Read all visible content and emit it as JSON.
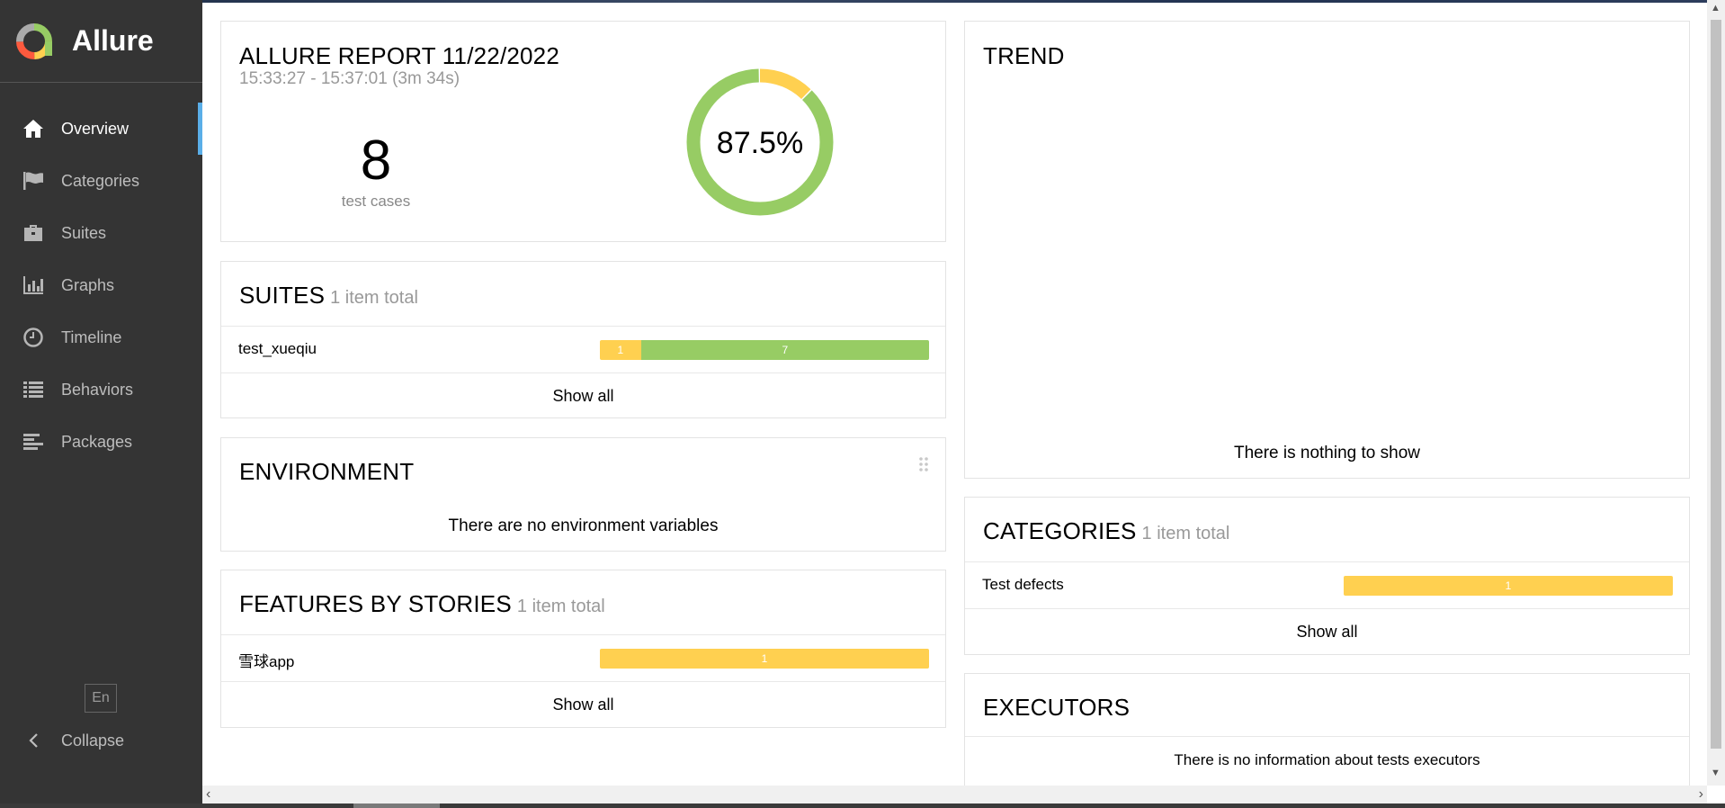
{
  "app": {
    "name": "Allure",
    "lang": "En",
    "collapse_label": "Collapse"
  },
  "nav": [
    {
      "label": "Overview",
      "icon": "home-icon",
      "active": true
    },
    {
      "label": "Categories",
      "icon": "flag-icon"
    },
    {
      "label": "Suites",
      "icon": "briefcase-icon"
    },
    {
      "label": "Graphs",
      "icon": "bar-chart-icon"
    },
    {
      "label": "Timeline",
      "icon": "clock-icon"
    },
    {
      "label": "Behaviors",
      "icon": "list-icon"
    },
    {
      "label": "Packages",
      "icon": "align-left-icon"
    }
  ],
  "summary": {
    "title": "ALLURE REPORT 11/22/2022",
    "time": "15:33:27 - 15:37:01 (3m 34s)",
    "test_count": "8",
    "test_count_label": "test cases",
    "percent_label": "87.5%",
    "ring": {
      "passed": 7,
      "broken": 1,
      "passed_color": "#97cc64",
      "broken_color": "#ffd050"
    }
  },
  "suites": {
    "title": "SUITES",
    "count": "1 item total",
    "rows": [
      {
        "name": "test_xueqiu",
        "broken": 1,
        "passed": 7,
        "broken_label": "1",
        "passed_label": "7"
      }
    ],
    "show_all": "Show all"
  },
  "environment": {
    "title": "ENVIRONMENT",
    "empty": "There are no environment variables"
  },
  "features": {
    "title": "FEATURES BY STORIES",
    "count": "1 item total",
    "rows": [
      {
        "name": "雪球app",
        "broken": 1,
        "broken_label": "1"
      }
    ],
    "show_all": "Show all"
  },
  "trend": {
    "title": "TREND",
    "empty": "There is nothing to show"
  },
  "categories": {
    "title": "CATEGORIES",
    "count": "1 item total",
    "rows": [
      {
        "name": "Test defects",
        "broken": 1,
        "broken_label": "1"
      }
    ],
    "show_all": "Show all"
  },
  "executors": {
    "title": "EXECUTORS",
    "empty": "There is no information about tests executors"
  }
}
